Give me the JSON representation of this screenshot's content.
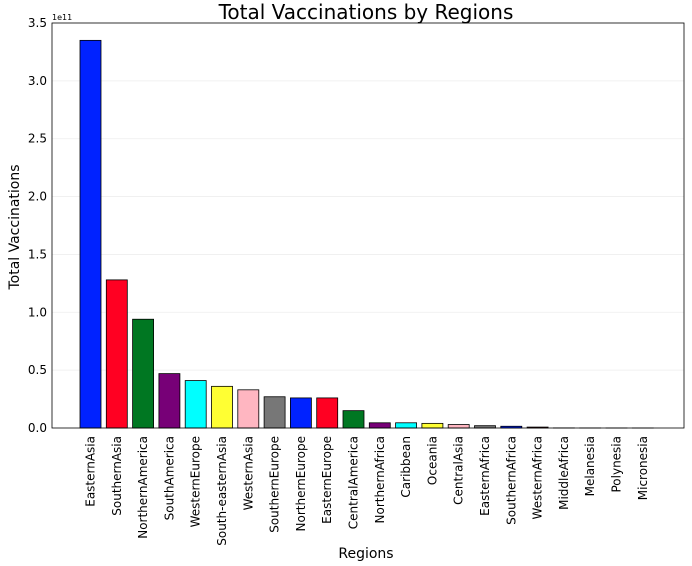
{
  "chart_data": {
    "type": "bar",
    "title": "Total Vaccinations by Regions",
    "xlabel": "Regions",
    "ylabel": "Total Vaccinations",
    "y_multiplier_label": "1e11",
    "ylim": [
      0,
      3.5
    ],
    "yticks": [
      "0.0",
      "0.5",
      "1.0",
      "1.5",
      "2.0",
      "2.5",
      "3.0",
      "3.5"
    ],
    "grid": "horizontal",
    "categories": [
      "EasternAsia",
      "SouthernAsia",
      "NorthernAmerica",
      "SouthAmerica",
      "WesternEurope",
      "South-easternAsia",
      "WesternAsia",
      "SouthernEurope",
      "NorthernEurope",
      "EasternEurope",
      "CentralAmerica",
      "NorthernAfrica",
      "Caribbean",
      "Oceania",
      "CentralAsia",
      "EasternAfrica",
      "SouthernAfrica",
      "WesternAfrica",
      "MiddleAfrica",
      "Melanesia",
      "Polynesia",
      "Micronesia"
    ],
    "values": [
      3.35,
      1.28,
      0.94,
      0.47,
      0.41,
      0.36,
      0.33,
      0.27,
      0.26,
      0.26,
      0.15,
      0.045,
      0.045,
      0.04,
      0.03,
      0.02,
      0.015,
      0.008,
      0.001,
      0.0005,
      0.0002,
      0.0001
    ],
    "colors": [
      "#0022ff",
      "#ff0022",
      "#007722",
      "#770077",
      "#00ffff",
      "#ffff33",
      "#ffb6c1",
      "#777777",
      "#0022ff",
      "#ff0022",
      "#007722",
      "#770077",
      "#00ffff",
      "#ffff33",
      "#ffb6c1",
      "#777777",
      "#0022ff",
      "#ff0022",
      "#007722",
      "#770077",
      "#00ffff",
      "#ffff33"
    ]
  }
}
